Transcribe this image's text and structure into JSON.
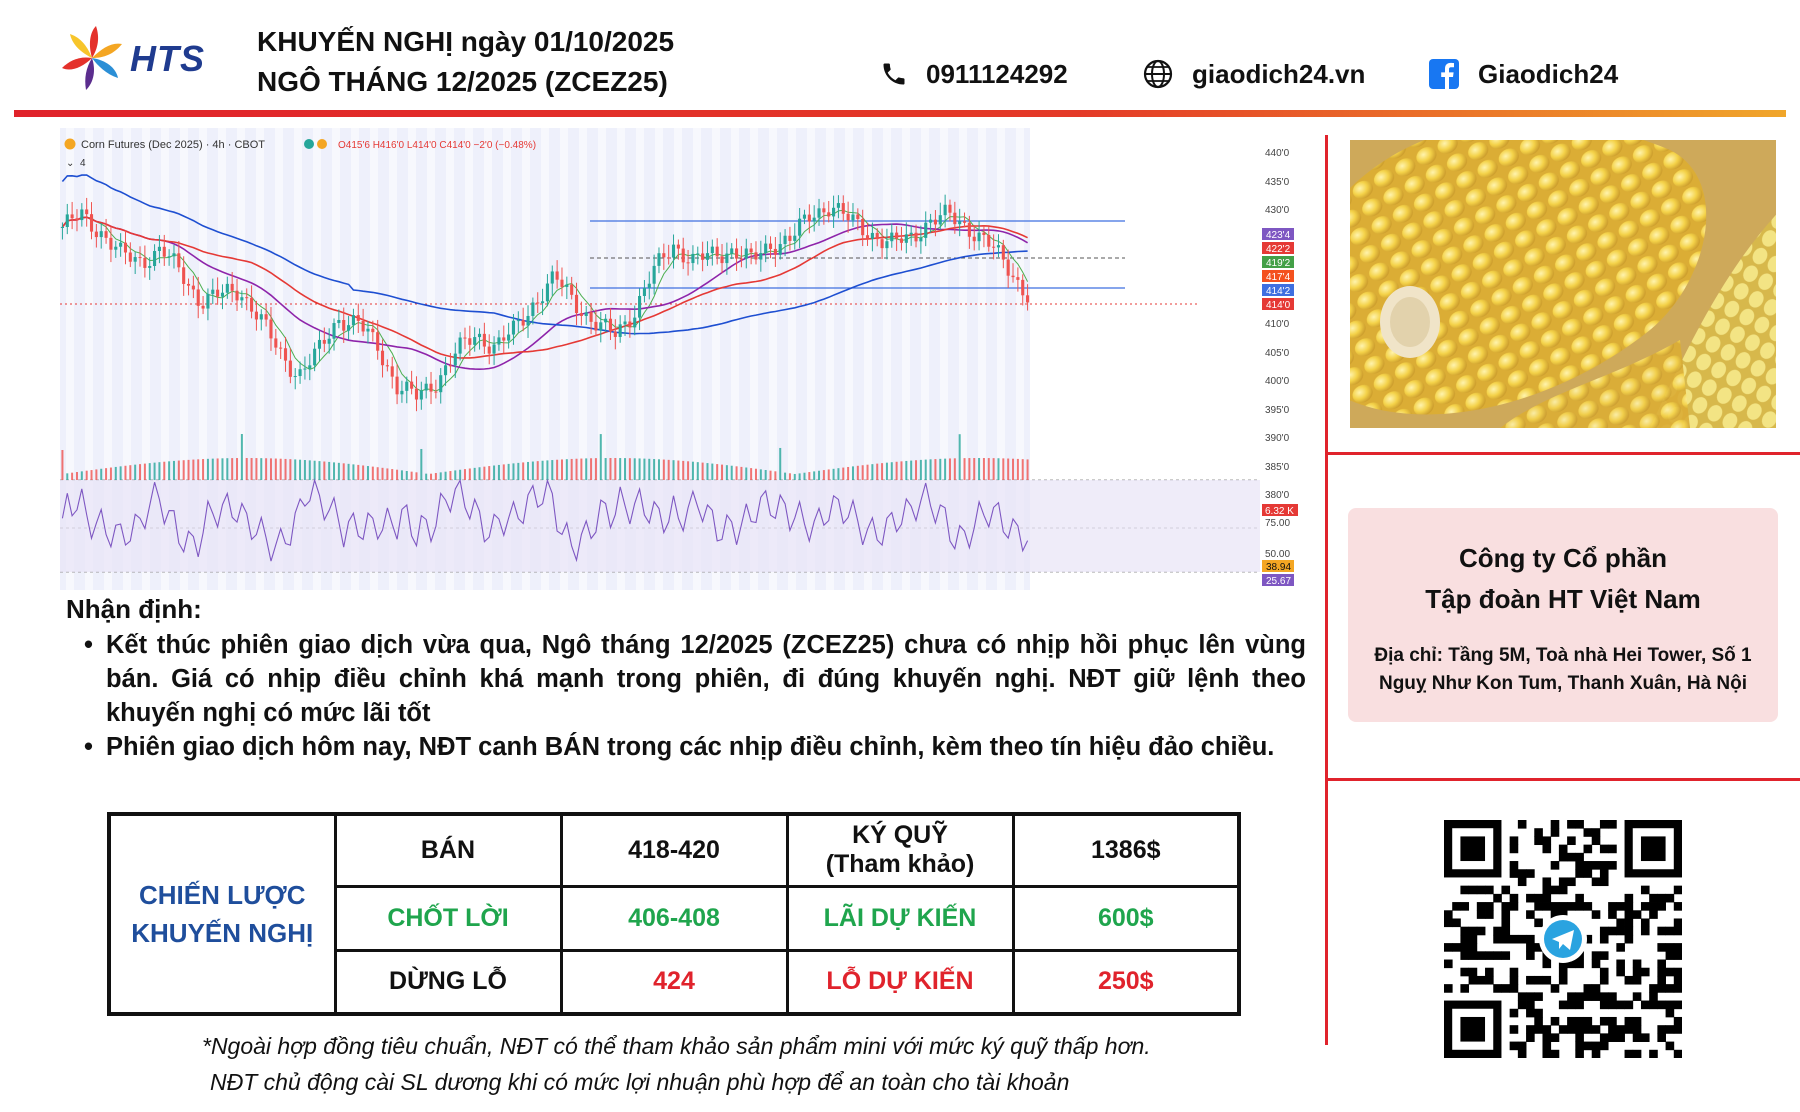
{
  "header": {
    "logo_text": "HTS",
    "title_line1": "KHUYẾN NGHỊ ngày 01/10/2025",
    "title_line2": "NGÔ THÁNG 12/2025 (ZCEZ25)",
    "phone": "0911124292",
    "website": "giaodich24.vn",
    "facebook": "Giaodich24",
    "icons": [
      "phone-icon",
      "globe-icon",
      "facebook-icon"
    ]
  },
  "chart": {
    "symbol_text": "Corn Futures (Dec 2025) · 4h · CBOT",
    "ohlc_text": "O415'6 H416'0 L414'0 C414'0 −2'0 (−0.48%)",
    "indicator_count": "4",
    "price_ticks": [
      "440'0",
      "435'0",
      "430'0",
      "410'0",
      "405'0",
      "400'0",
      "395'0",
      "390'0",
      "385'0",
      "380'0"
    ],
    "price_tags": [
      "423'4",
      "422'2",
      "419'2",
      "417'4",
      "414'2",
      "414'0",
      "6.32 K"
    ],
    "rsi_ticks": [
      "75.00",
      "50.00"
    ],
    "rsi_tags": [
      "38.94",
      "25.67"
    ],
    "colors": {
      "up": "#26a69a",
      "down": "#ef5350",
      "ema_short": "#4caf50",
      "ema_mid": "#8e24aa",
      "ema_long": "#e53935",
      "ma_long": "#1e4fd1",
      "rsi": "#7e57c2"
    },
    "chart_data": {
      "type": "line",
      "title": "Corn Futures (Dec 2025) · 4h · CBOT",
      "series": [
        {
          "name": "Corn Futures (Dec 2025)",
          "values": [
            426,
            428,
            425,
            421,
            420,
            422,
            418,
            413,
            414,
            415,
            410,
            404,
            400,
            404,
            410,
            409,
            405,
            398,
            396,
            399,
            404,
            407,
            405,
            408,
            413,
            417,
            413,
            409,
            407,
            411,
            418,
            423,
            420,
            421,
            422,
            420,
            423,
            424,
            428,
            430,
            427,
            425,
            423,
            424,
            427,
            428,
            426,
            423,
            419,
            414
          ]
        }
      ],
      "ylim": [
        378,
        442
      ],
      "last_price": "414'0"
    }
  },
  "analysis": {
    "heading": "Nhận định:",
    "bullets": [
      "Kết thúc phiên giao dịch vừa qua, Ngô tháng 12/2025 (ZCEZ25) chưa có nhịp hồi phục lên vùng bán. Giá có nhịp điều chỉnh khá mạnh trong phiên, đi đúng khuyến nghị. NĐT giữ lệnh theo khuyến nghị có mức lãi tốt",
      "Phiên giao dịch hôm nay, NĐT canh BÁN trong các nhịp điều chỉnh, kèm theo tín hiệu đảo chiều."
    ]
  },
  "strategy": {
    "label_line1": "CHIẾN LƯỢC",
    "label_line2": "KHUYẾN NGHỊ",
    "rows": [
      {
        "c1": "BÁN",
        "c2": "418-420",
        "c3_line1": "KÝ QUỸ",
        "c3_line2": "(Tham khảo)",
        "c4": "1386$"
      },
      {
        "c1": "CHỐT LỜI",
        "c2": "406-408",
        "c3": "LÃI DỰ KIẾN",
        "c4": "600$"
      },
      {
        "c1": "DỪNG LỖ",
        "c2": "424",
        "c3": "LỖ DỰ KIẾN",
        "c4": "250$"
      }
    ]
  },
  "footnote": {
    "line1": "*Ngoài hợp đồng tiêu chuẩn, NĐT có thể tham khảo sản phẩm mini với mức ký quỹ thấp hơn.",
    "line2": "NĐT chủ động cài SL dương khi có mức lợi nhuận phù hợp để an toàn cho tài khoản"
  },
  "company": {
    "name_line1": "Công ty Cổ phần",
    "name_line2": "Tập đoàn HT Việt Nam",
    "addr_line1": "Địa chỉ: Tầng 5M, Toà nhà Hei Tower, Số 1",
    "addr_line2": "Nguỵ Như Kon Tum, Thanh Xuân, Hà Nội"
  }
}
